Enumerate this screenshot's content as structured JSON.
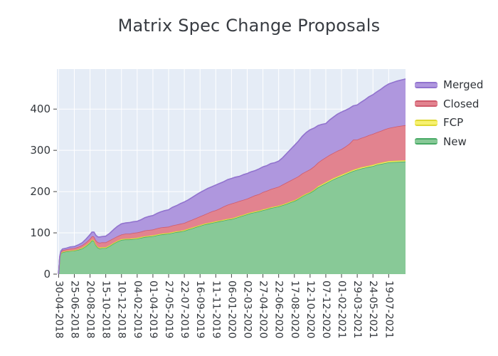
{
  "title": "Matrix Spec Change Proposals",
  "chart_data": {
    "type": "area",
    "stacked": true,
    "title": "Matrix Spec Change Proposals",
    "grid": true,
    "legend_position": "right",
    "legend_order": [
      "Merged",
      "Closed",
      "FCP",
      "New"
    ],
    "colors": {
      "plot_bg": "#e5ecf6",
      "grid": "#ffffff",
      "tick_text": "#35393e",
      "tick_mark": "#444444",
      "title_text": "#383c42"
    },
    "x_axis": {
      "tick_labels": [
        "30-04-2018",
        "25-06-2018",
        "20-08-2018",
        "15-10-2018",
        "10-12-2018",
        "04-02-2019",
        "01-04-2019",
        "27-05-2019",
        "22-07-2019",
        "16-09-2019",
        "11-11-2019",
        "06-01-2020",
        "02-03-2020",
        "27-04-2020",
        "22-06-2020",
        "17-08-2020",
        "12-10-2020",
        "07-12-2020",
        "01-02-2021",
        "29-03-2021",
        "24-05-2021",
        "19-07-2021"
      ],
      "tick_days": [
        0,
        56,
        112,
        168,
        224,
        280,
        336,
        392,
        448,
        504,
        560,
        616,
        672,
        728,
        784,
        840,
        896,
        952,
        1008,
        1064,
        1120,
        1176
      ],
      "range_days": [
        -6,
        1236
      ]
    },
    "y_axis": {
      "ticks": [
        0,
        100,
        200,
        300,
        400
      ],
      "range": [
        0,
        497
      ]
    },
    "x_days": [
      0,
      4,
      8,
      14,
      28,
      42,
      56,
      70,
      84,
      98,
      112,
      119,
      126,
      133,
      140,
      147,
      154,
      168,
      182,
      196,
      210,
      224,
      238,
      252,
      266,
      280,
      294,
      308,
      322,
      336,
      350,
      364,
      378,
      392,
      406,
      420,
      434,
      448,
      462,
      476,
      490,
      504,
      518,
      532,
      546,
      560,
      574,
      588,
      602,
      616,
      630,
      644,
      658,
      672,
      686,
      700,
      714,
      728,
      742,
      756,
      770,
      784,
      798,
      812,
      826,
      840,
      854,
      868,
      882,
      896,
      910,
      924,
      938,
      952,
      966,
      980,
      994,
      1008,
      1022,
      1036,
      1050,
      1064,
      1078,
      1092,
      1106,
      1120,
      1134,
      1148,
      1162,
      1176,
      1206,
      1236
    ],
    "series": [
      {
        "name": "New",
        "fill": "#88c997",
        "line": "#47a965",
        "values": [
          0,
          38,
          50,
          53,
          55,
          56,
          57,
          59,
          62,
          68,
          76,
          82,
          80,
          70,
          64,
          62,
          63,
          63,
          68,
          74,
          79,
          83,
          84,
          84,
          85,
          86,
          88,
          90,
          91,
          92,
          94,
          96,
          97,
          98,
          100,
          102,
          103,
          105,
          108,
          111,
          114,
          117,
          120,
          122,
          124,
          126,
          128,
          130,
          132,
          133,
          136,
          139,
          142,
          145,
          148,
          150,
          152,
          155,
          157,
          160,
          162,
          164,
          167,
          170,
          174,
          177,
          182,
          188,
          193,
          197,
          203,
          210,
          215,
          220,
          225,
          230,
          234,
          238,
          242,
          246,
          250,
          253,
          256,
          258,
          260,
          262,
          265,
          267,
          269,
          271,
          272,
          273
        ]
      },
      {
        "name": "FCP",
        "fill": "#f7f170",
        "line": "#ded832",
        "values": [
          0,
          1,
          1,
          1,
          1,
          1,
          1,
          1,
          2,
          2,
          2,
          2,
          2,
          2,
          2,
          2,
          2,
          2,
          2,
          2,
          2,
          2,
          2,
          2,
          2,
          2,
          2,
          2,
          2,
          2,
          2,
          2,
          2,
          2,
          2,
          2,
          2,
          2,
          2,
          2,
          2,
          2,
          2,
          2,
          2,
          2,
          2,
          2,
          2,
          2,
          2,
          2,
          2,
          2,
          2,
          2,
          2,
          2,
          2,
          2,
          2,
          2,
          2,
          2,
          2,
          2,
          2,
          2,
          2,
          2,
          2,
          3,
          3,
          3,
          3,
          3,
          3,
          3,
          3,
          3,
          3,
          3,
          3,
          3,
          3,
          3,
          3,
          3,
          3,
          3,
          3,
          3
        ]
      },
      {
        "name": "Closed",
        "fill": "#e2838f",
        "line": "#cf5a6c",
        "values": [
          0,
          2,
          3,
          4,
          4,
          5,
          5,
          6,
          6,
          7,
          8,
          8,
          9,
          10,
          11,
          12,
          12,
          12,
          12,
          11,
          11,
          11,
          12,
          12,
          13,
          13,
          13,
          14,
          14,
          14,
          15,
          15,
          15,
          15,
          16,
          16,
          17,
          17,
          18,
          19,
          20,
          21,
          22,
          24,
          26,
          27,
          29,
          32,
          34,
          36,
          36,
          36,
          36,
          36,
          37,
          39,
          40,
          42,
          43,
          44,
          45,
          46,
          48,
          50,
          51,
          53,
          53,
          54,
          54,
          55,
          56,
          57,
          59,
          60,
          61,
          61,
          62,
          62,
          64,
          67,
          73,
          70,
          71,
          72,
          74,
          75,
          76,
          77,
          79,
          80,
          83,
          85
        ]
      },
      {
        "name": "Merged",
        "fill": "#af97de",
        "line": "#9173ce",
        "values": [
          0,
          1,
          2,
          3,
          3,
          4,
          4,
          5,
          6,
          8,
          10,
          10,
          11,
          12,
          13,
          14,
          14,
          15,
          17,
          21,
          24,
          26,
          26,
          27,
          27,
          27,
          29,
          31,
          33,
          34,
          36,
          38,
          40,
          41,
          44,
          46,
          49,
          51,
          52,
          54,
          56,
          58,
          59,
          60,
          60,
          61,
          61,
          60,
          61,
          61,
          61,
          60,
          61,
          61,
          61,
          60,
          61,
          61,
          61,
          62,
          61,
          62,
          65,
          70,
          75,
          80,
          85,
          90,
          94,
          96,
          93,
          90,
          86,
          82,
          85,
          87,
          89,
          90,
          88,
          86,
          82,
          84,
          87,
          90,
          93,
          95,
          98,
          101,
          104,
          107,
          110,
          112
        ]
      }
    ]
  }
}
